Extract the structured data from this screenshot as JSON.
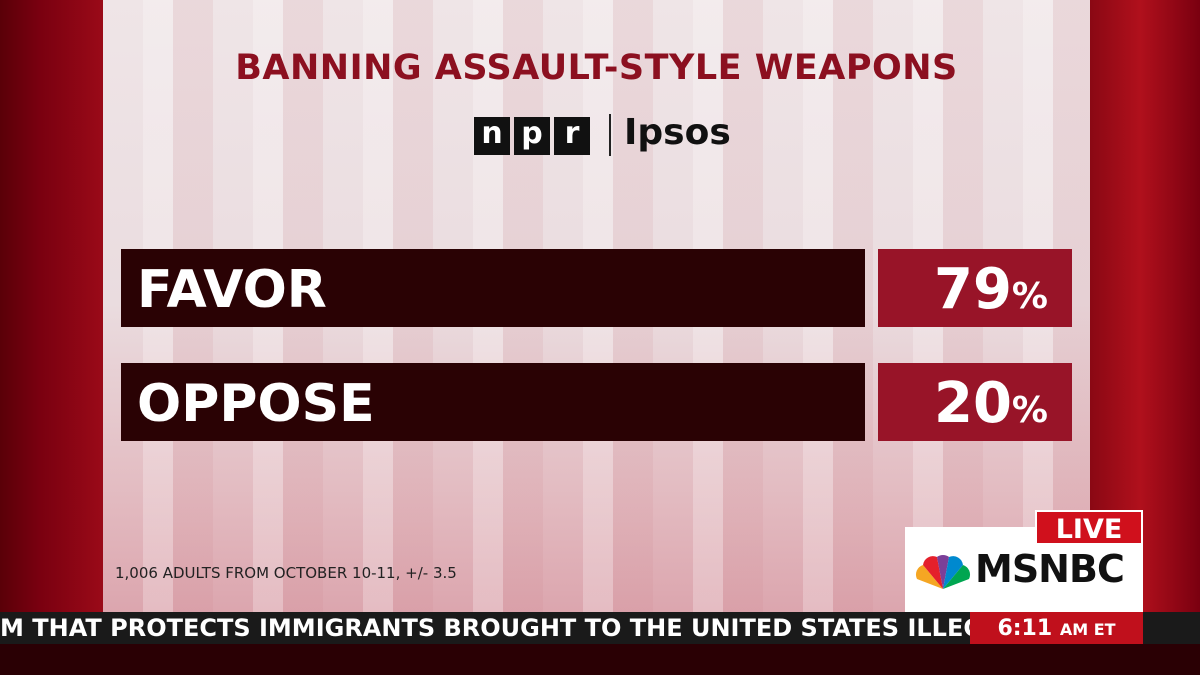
{
  "header": {
    "title": "BANNING ASSAULT-STYLE WEAPONS",
    "logos": [
      "npr",
      "Ipsos"
    ]
  },
  "rows": [
    {
      "label": "FAVOR",
      "number": "79",
      "unit": "%"
    },
    {
      "label": "OPPOSE",
      "number": "20",
      "unit": "%"
    }
  ],
  "footnote": "1,006 ADULTS FROM OCTOBER 10-11, +/- 3.5",
  "broadcast": {
    "live": "LIVE",
    "network": "MSNBC",
    "ticker": "M THAT PROTECTS IMMIGRANTS BROUGHT TO THE UNITED STATES ILLEGALLY AS",
    "time": "6:11",
    "zone": "AM ET"
  }
}
